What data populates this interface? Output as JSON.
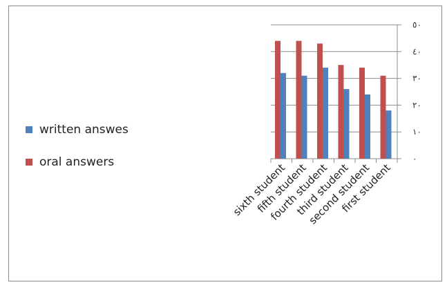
{
  "chart_data": {
    "type": "bar",
    "categories": [
      "sixth student",
      "fifth student",
      "fourth student",
      "third student",
      "second student",
      "first student"
    ],
    "series": [
      {
        "name": "oral answers",
        "color": "#c0504d",
        "values": [
          44,
          44,
          43,
          35,
          34,
          31
        ]
      },
      {
        "name": "written answes",
        "color": "#4f81bd",
        "values": [
          32,
          31,
          34,
          26,
          24,
          18
        ]
      }
    ],
    "y_ticks": [
      "٠",
      "١٠",
      "٢٠",
      "٣٠",
      "٤٠",
      "٥٠"
    ],
    "y_tick_values": [
      0,
      10,
      20,
      30,
      40,
      50
    ],
    "ylim": [
      0,
      50
    ],
    "y_axis_side": "right",
    "legend_position": "left",
    "grid": true
  },
  "legend": [
    {
      "label": "written answes",
      "color": "#4f81bd"
    },
    {
      "label": "oral answers",
      "color": "#c0504d"
    }
  ]
}
